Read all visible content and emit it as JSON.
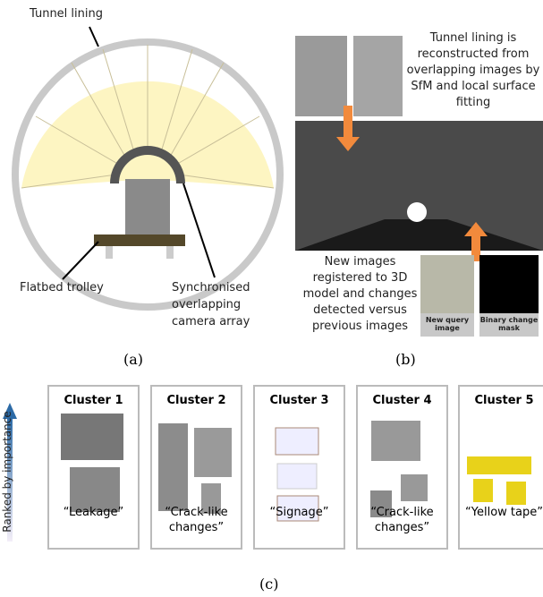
{
  "panel_a": {
    "tunnel_lining": "Tunnel lining",
    "flatbed_trolley": "Flatbed trolley",
    "camera_array": "Synchronised overlapping camera array",
    "caption": "(a)"
  },
  "panel_b": {
    "reconstruction_note": "Tunnel lining is reconstructed from overlapping images by SfM and local surface fitting",
    "registration_note": "New images registered to 3D model and changes detected versus previous images",
    "query_image": "New query image",
    "change_mask": "Binary change mask",
    "caption": "(b)"
  },
  "panel_c": {
    "axis_label": "Ranked by importance",
    "clusters": [
      {
        "title": "Cluster 1",
        "caption": "“Leakage”"
      },
      {
        "title": "Cluster 2",
        "caption": "“Crack-like changes”"
      },
      {
        "title": "Cluster 3",
        "caption": "“Signage”"
      },
      {
        "title": "Cluster 4",
        "caption": "“Crack-like changes”"
      },
      {
        "title": "Cluster 5",
        "caption": "“Yellow tape”"
      }
    ],
    "caption": "(c)"
  }
}
